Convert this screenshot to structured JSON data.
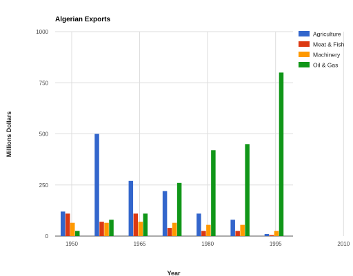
{
  "chart_data": {
    "type": "bar",
    "title": "Algerian Exports",
    "xlabel": "Year",
    "ylabel": "Millions Dollars",
    "ylim": [
      0,
      1000
    ],
    "yticks": [
      0,
      250,
      500,
      750,
      1000
    ],
    "categories": [
      "1950",
      "1957.5",
      "1965",
      "1972.5",
      "1980",
      "1987.5",
      "1995"
    ],
    "xticks": [
      "1950",
      "1965",
      "1980",
      "1995",
      "2010"
    ],
    "grid": true,
    "legend": "right",
    "series": [
      {
        "name": "Agriculture",
        "color": "#3366cc",
        "values": [
          120,
          500,
          270,
          220,
          110,
          80,
          10
        ]
      },
      {
        "name": "Meat & Fish",
        "color": "#dc3912",
        "values": [
          110,
          70,
          110,
          40,
          25,
          25,
          5
        ]
      },
      {
        "name": "Machinery",
        "color": "#ff9900",
        "values": [
          65,
          65,
          70,
          65,
          55,
          55,
          25
        ]
      },
      {
        "name": "Oil & Gas",
        "color": "#109618",
        "values": [
          25,
          80,
          110,
          260,
          420,
          450,
          800
        ]
      }
    ]
  }
}
